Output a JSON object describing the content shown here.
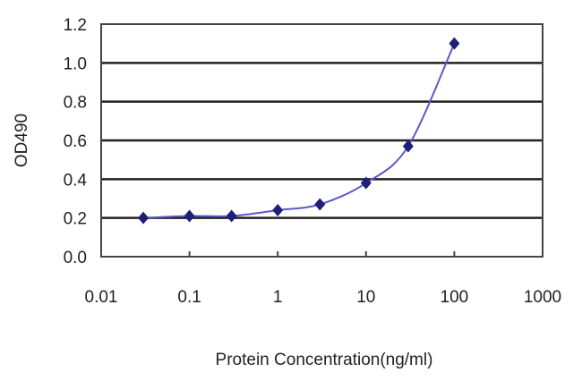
{
  "chart_data": {
    "type": "line",
    "title": "",
    "xlabel": "Protein Concentration(ng/ml)",
    "ylabel": "OD490",
    "xscale": "log",
    "xlim": [
      0.01,
      1000
    ],
    "ylim": [
      0.0,
      1.2
    ],
    "xticks": [
      "0.01",
      "0.1",
      "1",
      "10",
      "100",
      "1000"
    ],
    "xtick_values": [
      0.01,
      0.1,
      1,
      10,
      100,
      1000
    ],
    "yticks": [
      "0.0",
      "0.2",
      "0.4",
      "0.6",
      "0.8",
      "1.0",
      "1.2"
    ],
    "ytick_values": [
      0,
      0.2,
      0.4,
      0.6,
      0.8,
      1.0,
      1.2
    ],
    "grid": "horizontal",
    "series": [
      {
        "name": "OD490",
        "color": "#1f1f7a",
        "line_color": "#5a5ac8",
        "marker": "diamond",
        "x": [
          0.03,
          0.1,
          0.3,
          1,
          3,
          10,
          30,
          100
        ],
        "y": [
          0.2,
          0.21,
          0.21,
          0.24,
          0.27,
          0.38,
          0.57,
          1.1
        ]
      }
    ]
  }
}
